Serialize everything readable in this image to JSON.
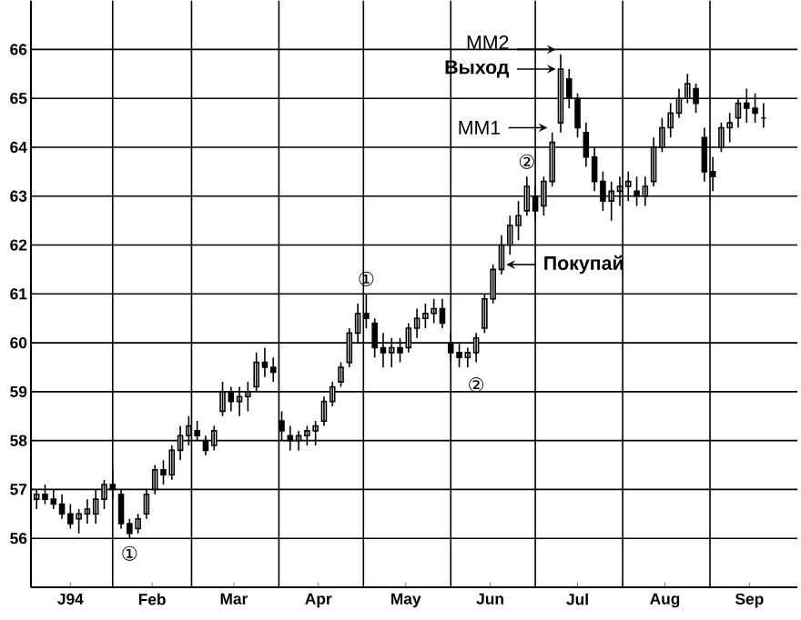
{
  "chart_data": {
    "type": "candlestick",
    "color": "#000000",
    "x": [
      "1994-01-05",
      "1994-01-08",
      "1994-01-11",
      "1994-01-14",
      "1994-01-17",
      "1994-01-20",
      "1994-01-23",
      "1994-01-26",
      "1994-01-29",
      "1994-02-01",
      "1994-02-04",
      "1994-02-07",
      "1994-02-10",
      "1994-02-13",
      "1994-02-16",
      "1994-02-19",
      "1994-02-22",
      "1994-02-25",
      "1994-02-28",
      "1994-03-03",
      "1994-03-06",
      "1994-03-09",
      "1994-03-12",
      "1994-03-15",
      "1994-03-18",
      "1994-03-21",
      "1994-03-24",
      "1994-03-27",
      "1994-03-30",
      "1994-04-02",
      "1994-04-05",
      "1994-04-08",
      "1994-04-11",
      "1994-04-14",
      "1994-04-17",
      "1994-04-20",
      "1994-04-23",
      "1994-04-26",
      "1994-04-29",
      "1994-05-02",
      "1994-05-05",
      "1994-05-08",
      "1994-05-11",
      "1994-05-14",
      "1994-05-17",
      "1994-05-20",
      "1994-05-23",
      "1994-05-26",
      "1994-05-29",
      "1994-06-01",
      "1994-06-04",
      "1994-06-07",
      "1994-06-10",
      "1994-06-13",
      "1994-06-16",
      "1994-06-19",
      "1994-06-22",
      "1994-06-25",
      "1994-06-28",
      "1994-07-01",
      "1994-07-04",
      "1994-07-07",
      "1994-07-10",
      "1994-07-13",
      "1994-07-16",
      "1994-07-19",
      "1994-07-22",
      "1994-07-25",
      "1994-07-28",
      "1994-07-31",
      "1994-08-03",
      "1994-08-06",
      "1994-08-09",
      "1994-08-12",
      "1994-08-15",
      "1994-08-18",
      "1994-08-21",
      "1994-08-24",
      "1994-08-27",
      "1994-08-30",
      "1994-09-02",
      "1994-09-05",
      "1994-09-08",
      "1994-09-11",
      "1994-09-14",
      "1994-09-17",
      "1994-09-20"
    ],
    "ohlc": [
      [
        56.8,
        57.0,
        56.6,
        56.9
      ],
      [
        56.9,
        57.1,
        56.7,
        56.8
      ],
      [
        56.8,
        57.0,
        56.6,
        56.7
      ],
      [
        56.7,
        56.9,
        56.4,
        56.5
      ],
      [
        56.5,
        56.7,
        56.2,
        56.3
      ],
      [
        56.4,
        56.6,
        56.1,
        56.5
      ],
      [
        56.5,
        56.8,
        56.3,
        56.6
      ],
      [
        56.5,
        57.0,
        56.3,
        56.8
      ],
      [
        56.8,
        57.2,
        56.6,
        57.1
      ],
      [
        57.1,
        57.4,
        56.8,
        57.0
      ],
      [
        56.9,
        57.0,
        56.2,
        56.3
      ],
      [
        56.3,
        56.4,
        56.0,
        56.1
      ],
      [
        56.2,
        56.5,
        56.1,
        56.4
      ],
      [
        56.5,
        57.0,
        56.4,
        56.9
      ],
      [
        57.0,
        57.5,
        56.9,
        57.4
      ],
      [
        57.4,
        57.6,
        57.1,
        57.3
      ],
      [
        57.3,
        57.9,
        57.2,
        57.8
      ],
      [
        57.8,
        58.3,
        57.6,
        58.1
      ],
      [
        58.1,
        58.5,
        57.9,
        58.3
      ],
      [
        58.2,
        58.4,
        58.0,
        58.1
      ],
      [
        58.0,
        58.1,
        57.7,
        57.8
      ],
      [
        57.9,
        58.3,
        57.8,
        58.2
      ],
      [
        58.6,
        59.2,
        58.5,
        59.0
      ],
      [
        59.0,
        59.1,
        58.6,
        58.8
      ],
      [
        58.8,
        59.1,
        58.5,
        58.9
      ],
      [
        58.9,
        59.2,
        58.6,
        59.0
      ],
      [
        59.1,
        59.8,
        59.0,
        59.6
      ],
      [
        59.6,
        59.9,
        59.3,
        59.5
      ],
      [
        59.5,
        59.7,
        59.2,
        59.4
      ],
      [
        58.4,
        58.6,
        58.0,
        58.2
      ],
      [
        58.1,
        58.3,
        57.8,
        58.0
      ],
      [
        58.0,
        58.2,
        57.8,
        58.1
      ],
      [
        58.1,
        58.3,
        57.9,
        58.2
      ],
      [
        58.2,
        58.4,
        57.9,
        58.3
      ],
      [
        58.4,
        58.9,
        58.3,
        58.8
      ],
      [
        58.8,
        59.2,
        58.7,
        59.1
      ],
      [
        59.2,
        59.6,
        59.1,
        59.5
      ],
      [
        59.6,
        60.3,
        59.5,
        60.2
      ],
      [
        60.2,
        60.8,
        60.0,
        60.6
      ],
      [
        60.6,
        61.0,
        60.3,
        60.5
      ],
      [
        60.4,
        60.5,
        59.7,
        59.9
      ],
      [
        59.9,
        60.2,
        59.5,
        59.8
      ],
      [
        59.8,
        60.1,
        59.5,
        59.9
      ],
      [
        59.9,
        60.1,
        59.6,
        59.8
      ],
      [
        59.9,
        60.4,
        59.8,
        60.3
      ],
      [
        60.3,
        60.7,
        60.1,
        60.5
      ],
      [
        60.5,
        60.8,
        60.3,
        60.6
      ],
      [
        60.6,
        60.9,
        60.4,
        60.7
      ],
      [
        60.7,
        60.9,
        60.3,
        60.4
      ],
      [
        60.0,
        60.2,
        59.6,
        59.8
      ],
      [
        59.8,
        60.0,
        59.5,
        59.7
      ],
      [
        59.7,
        59.9,
        59.5,
        59.8
      ],
      [
        59.8,
        60.2,
        59.6,
        60.1
      ],
      [
        60.3,
        61.0,
        60.2,
        60.9
      ],
      [
        60.9,
        61.6,
        60.8,
        61.5
      ],
      [
        61.5,
        62.2,
        61.4,
        62.0
      ],
      [
        62.0,
        62.6,
        61.8,
        62.4
      ],
      [
        62.4,
        62.9,
        62.1,
        62.6
      ],
      [
        62.7,
        63.4,
        62.6,
        63.2
      ],
      [
        63.0,
        63.2,
        62.5,
        62.7
      ],
      [
        62.8,
        63.4,
        62.6,
        63.3
      ],
      [
        63.3,
        64.3,
        63.2,
        64.1
      ],
      [
        64.5,
        65.9,
        64.3,
        65.6
      ],
      [
        65.4,
        65.6,
        64.8,
        65.0
      ],
      [
        65.0,
        65.1,
        64.2,
        64.4
      ],
      [
        64.3,
        64.5,
        63.6,
        63.8
      ],
      [
        63.8,
        64.0,
        63.1,
        63.3
      ],
      [
        63.3,
        63.5,
        62.7,
        62.9
      ],
      [
        62.9,
        63.3,
        62.5,
        63.1
      ],
      [
        63.1,
        63.4,
        62.8,
        63.2
      ],
      [
        63.2,
        63.5,
        62.9,
        63.3
      ],
      [
        63.1,
        63.4,
        62.8,
        63.0
      ],
      [
        63.0,
        63.4,
        62.8,
        63.2
      ],
      [
        63.3,
        64.2,
        63.2,
        64.0
      ],
      [
        64.0,
        64.6,
        63.9,
        64.4
      ],
      [
        64.4,
        64.9,
        64.2,
        64.7
      ],
      [
        64.7,
        65.2,
        64.6,
        65.0
      ],
      [
        65.0,
        65.5,
        64.9,
        65.3
      ],
      [
        65.2,
        65.3,
        64.7,
        64.9
      ],
      [
        64.2,
        64.4,
        63.3,
        63.5
      ],
      [
        63.5,
        63.8,
        63.1,
        63.4
      ],
      [
        64.0,
        64.5,
        63.9,
        64.4
      ],
      [
        64.4,
        64.7,
        64.1,
        64.5
      ],
      [
        64.6,
        65.0,
        64.4,
        64.9
      ],
      [
        64.9,
        65.2,
        64.5,
        64.8
      ],
      [
        64.8,
        65.1,
        64.5,
        64.7
      ],
      [
        64.6,
        64.9,
        64.4,
        64.6
      ]
    ],
    "xlim": [
      "1994-01-03",
      "1994-10-02"
    ],
    "xticks": [
      {
        "value": "1994-01-17",
        "label": "J94"
      },
      {
        "value": "1994-02-15",
        "label": "Feb"
      },
      {
        "value": "1994-03-16",
        "label": "Mar"
      },
      {
        "value": "1994-04-15",
        "label": "Apr"
      },
      {
        "value": "1994-05-16",
        "label": "May"
      },
      {
        "value": "1994-06-15",
        "label": "Jun"
      },
      {
        "value": "1994-07-16",
        "label": "Jul"
      },
      {
        "value": "1994-08-16",
        "label": "Aug"
      },
      {
        "value": "1994-09-15",
        "label": "Sep"
      }
    ],
    "ylim": [
      55,
      67
    ],
    "yticks": [
      56,
      57,
      58,
      59,
      60,
      61,
      62,
      63,
      64,
      65,
      66
    ],
    "grid": "y",
    "ref_lines": [
      {
        "axis": "x",
        "value": "1994-02-01"
      },
      {
        "axis": "x",
        "value": "1994-03-01"
      },
      {
        "axis": "x",
        "value": "1994-04-01"
      },
      {
        "axis": "x",
        "value": "1994-05-01"
      },
      {
        "axis": "x",
        "value": "1994-06-01"
      },
      {
        "axis": "x",
        "value": "1994-07-01"
      },
      {
        "axis": "x",
        "value": "1994-08-01"
      },
      {
        "axis": "x",
        "value": "1994-09-01"
      }
    ],
    "annotations": [
      {
        "text": "①",
        "x": "1994-02-07",
        "y": 56.0
      },
      {
        "text": "①",
        "x": "1994-05-02",
        "y": 61.0
      },
      {
        "text": "②",
        "x": "1994-06-10",
        "y": 59.6
      },
      {
        "text": "②",
        "x": "1994-06-28",
        "y": 63.4
      },
      {
        "text": "Покупай",
        "x": "1994-06-19",
        "y": 61.6
      },
      {
        "text": "ММ1",
        "x": "1994-07-07",
        "y": 64.4
      },
      {
        "text": "Выход",
        "x": "1994-07-10",
        "y": 65.6
      },
      {
        "text": "ММ2",
        "x": "1994-07-10",
        "y": 66.0
      }
    ]
  }
}
